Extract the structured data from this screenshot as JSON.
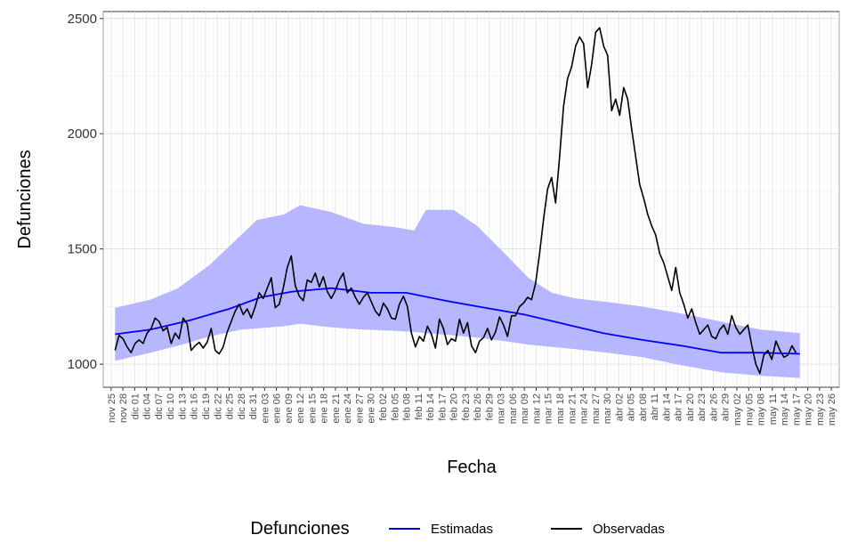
{
  "chart_data": {
    "type": "line",
    "xlabel": "Fecha",
    "ylabel": "Defunciones",
    "ylim": [
      900,
      2530
    ],
    "yticks": [
      1000,
      1500,
      2000,
      2500
    ],
    "x_tick_labels": [
      "nov 25",
      "nov 28",
      "dic 01",
      "dic 04",
      "dic 07",
      "dic 10",
      "dic 13",
      "dic 16",
      "dic 19",
      "dic 22",
      "dic 25",
      "dic 28",
      "dic 31",
      "ene 03",
      "ene 06",
      "ene 09",
      "ene 12",
      "ene 15",
      "ene 18",
      "ene 21",
      "ene 24",
      "ene 27",
      "ene 30",
      "feb 02",
      "feb 05",
      "feb 08",
      "feb 11",
      "feb 14",
      "feb 17",
      "feb 20",
      "feb 23",
      "feb 26",
      "feb 29",
      "mar 03",
      "mar 06",
      "mar 09",
      "mar 12",
      "mar 15",
      "mar 18",
      "mar 21",
      "mar 24",
      "mar 27",
      "mar 30",
      "abr 02",
      "abr 05",
      "abr 08",
      "abr 11",
      "abr 14",
      "abr 17",
      "abr 20",
      "abr 23",
      "abr 26",
      "abr 29",
      "may 02",
      "may 05",
      "may 08",
      "may 11",
      "may 14",
      "may 17",
      "may 20",
      "may 23",
      "may 26"
    ],
    "grid": true,
    "legend": {
      "title": "Defunciones",
      "position": "bottom"
    },
    "series": [
      {
        "name": "Estimadas",
        "color": "#0000ff",
        "x_start": "2019-11-26",
        "y_start_date": "nov 26",
        "points": [
          [
            "nov 26",
            1130
          ],
          [
            "dic 05",
            1150
          ],
          [
            "dic 15",
            1190
          ],
          [
            "dic 25",
            1240
          ],
          [
            "ene 02",
            1290
          ],
          [
            "ene 10",
            1315
          ],
          [
            "ene 20",
            1330
          ],
          [
            "ene 30",
            1310
          ],
          [
            "feb 08",
            1310
          ],
          [
            "feb 18",
            1275
          ],
          [
            "feb 28",
            1245
          ],
          [
            "mar 09",
            1215
          ],
          [
            "mar 19",
            1175
          ],
          [
            "mar 29",
            1135
          ],
          [
            "abr 08",
            1105
          ],
          [
            "abr 18",
            1080
          ],
          [
            "abr 28",
            1050
          ],
          [
            "may 08",
            1050
          ],
          [
            "may 18",
            1045
          ]
        ],
        "band": [
          [
            "nov 26",
            1015,
            1245
          ],
          [
            "dic 05",
            1050,
            1280
          ],
          [
            "dic 12",
            1080,
            1330
          ],
          [
            "dic 20",
            1120,
            1430
          ],
          [
            "dic 28",
            1150,
            1560
          ],
          [
            "ene 01",
            1155,
            1625
          ],
          [
            "ene 08",
            1165,
            1650
          ],
          [
            "ene 12",
            1175,
            1690
          ],
          [
            "ene 20",
            1160,
            1660
          ],
          [
            "ene 28",
            1150,
            1610
          ],
          [
            "feb 05",
            1145,
            1595
          ],
          [
            "feb 10",
            1140,
            1580
          ],
          [
            "feb 13",
            1135,
            1670
          ],
          [
            "feb 20",
            1125,
            1670
          ],
          [
            "feb 26",
            1115,
            1600
          ],
          [
            "mar 04",
            1100,
            1480
          ],
          [
            "mar 10",
            1085,
            1375
          ],
          [
            "mar 16",
            1075,
            1310
          ],
          [
            "mar 22",
            1065,
            1285
          ],
          [
            "mar 30",
            1050,
            1270
          ],
          [
            "abr 08",
            1030,
            1250
          ],
          [
            "abr 18",
            995,
            1220
          ],
          [
            "abr 28",
            965,
            1185
          ],
          [
            "may 08",
            950,
            1150
          ],
          [
            "may 18",
            940,
            1135
          ]
        ]
      },
      {
        "name": "Observadas",
        "color": "#000000",
        "values": [
          1060,
          1125,
          1110,
          1075,
          1050,
          1090,
          1105,
          1090,
          1135,
          1155,
          1200,
          1185,
          1145,
          1160,
          1090,
          1135,
          1110,
          1200,
          1175,
          1060,
          1080,
          1095,
          1070,
          1095,
          1155,
          1060,
          1045,
          1075,
          1140,
          1185,
          1230,
          1260,
          1215,
          1240,
          1200,
          1250,
          1310,
          1285,
          1330,
          1375,
          1245,
          1260,
          1330,
          1420,
          1470,
          1340,
          1295,
          1275,
          1365,
          1355,
          1395,
          1335,
          1380,
          1315,
          1285,
          1320,
          1365,
          1395,
          1310,
          1330,
          1290,
          1260,
          1290,
          1310,
          1270,
          1230,
          1210,
          1265,
          1240,
          1200,
          1195,
          1260,
          1295,
          1250,
          1135,
          1075,
          1120,
          1100,
          1165,
          1130,
          1070,
          1195,
          1155,
          1085,
          1110,
          1100,
          1195,
          1135,
          1180,
          1080,
          1050,
          1100,
          1115,
          1155,
          1105,
          1140,
          1205,
          1170,
          1120,
          1210,
          1210,
          1250,
          1265,
          1290,
          1280,
          1350,
          1480,
          1630,
          1760,
          1810,
          1700,
          1900,
          2120,
          2240,
          2290,
          2380,
          2420,
          2390,
          2200,
          2300,
          2440,
          2460,
          2380,
          2340,
          2100,
          2150,
          2080,
          2200,
          2150,
          2020,
          1900,
          1780,
          1720,
          1650,
          1600,
          1560,
          1480,
          1440,
          1380,
          1320,
          1420,
          1310,
          1260,
          1200,
          1240,
          1180,
          1130,
          1150,
          1170,
          1120,
          1110,
          1150,
          1170,
          1130,
          1210,
          1160,
          1130,
          1150,
          1170,
          1080,
          1000,
          960,
          1040,
          1060,
          1020,
          1100,
          1060,
          1030,
          1040,
          1080,
          1050
        ]
      }
    ]
  }
}
